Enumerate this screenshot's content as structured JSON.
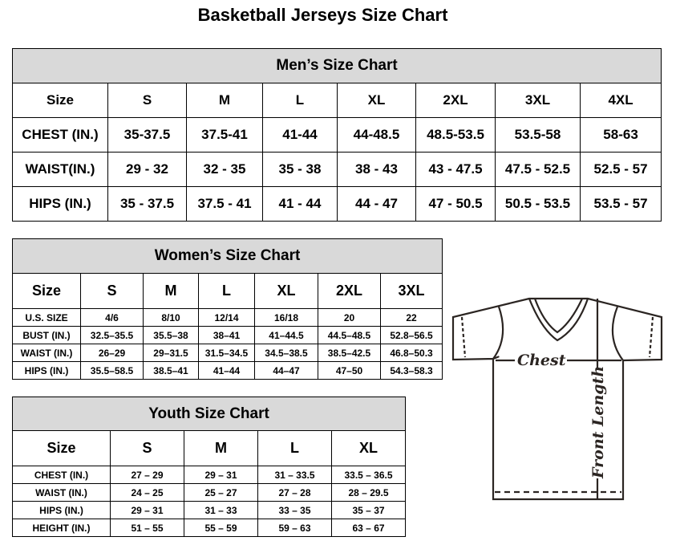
{
  "title": "Basketball Jerseys Size Chart",
  "men": {
    "heading": "Men’s Size Chart",
    "header": [
      "Size",
      "S",
      "M",
      "L",
      "XL",
      "2XL",
      "3XL",
      "4XL"
    ],
    "rows": [
      [
        "CHEST (IN.)",
        "35-37.5",
        "37.5-41",
        "41-44",
        "44-48.5",
        "48.5-53.5",
        "53.5-58",
        "58-63"
      ],
      [
        "WAIST(IN.)",
        "29 - 32",
        "32 - 35",
        "35 - 38",
        "38 - 43",
        "43 - 47.5",
        "47.5 - 52.5",
        "52.5 - 57"
      ],
      [
        "HIPS (IN.)",
        "35 - 37.5",
        "37.5 - 41",
        "41 - 44",
        "44 - 47",
        "47 - 50.5",
        "50.5 - 53.5",
        "53.5 - 57"
      ]
    ]
  },
  "women": {
    "heading": "Women’s Size Chart",
    "header": [
      "Size",
      "S",
      "M",
      "L",
      "XL",
      "2XL",
      "3XL"
    ],
    "rows": [
      [
        "U.S.  SIZE",
        "4/6",
        "8/10",
        "12/14",
        "16/18",
        "20",
        "22"
      ],
      [
        "BUST  (IN.)",
        "32.5–35.5",
        "35.5–38",
        "38–41",
        "41–44.5",
        "44.5–48.5",
        "52.8–56.5"
      ],
      [
        "WAIST  (IN.)",
        "26–29",
        "29–31.5",
        "31.5–34.5",
        "34.5–38.5",
        "38.5–42.5",
        "46.8–50.3"
      ],
      [
        "HIPS  (IN.)",
        "35.5–58.5",
        "38.5–41",
        "41–44",
        "44–47",
        "47–50",
        "54.3–58.3"
      ]
    ]
  },
  "youth": {
    "heading": "Youth Size Chart",
    "header": [
      "Size",
      "S",
      "M",
      "L",
      "XL"
    ],
    "rows": [
      [
        "CHEST  (IN.)",
        "27  –  29",
        "29  –  31",
        "31  –  33.5",
        "33.5  –  36.5"
      ],
      [
        "WAIST  (IN.)",
        "24  –  25",
        "25  –  27",
        "27  –  28",
        "28  –  29.5"
      ],
      [
        "HIPS  (IN.)",
        "29  –  31",
        "31  –  33",
        "33  –  35",
        "35  –  37"
      ],
      [
        "HEIGHT  (IN.)",
        "51  –  55",
        "55  –  59",
        "59  –  63",
        "63  –  67"
      ]
    ]
  },
  "diagram": {
    "chest_label": "Chest",
    "length_label": "Front Length",
    "line_color": "#2b2522"
  }
}
